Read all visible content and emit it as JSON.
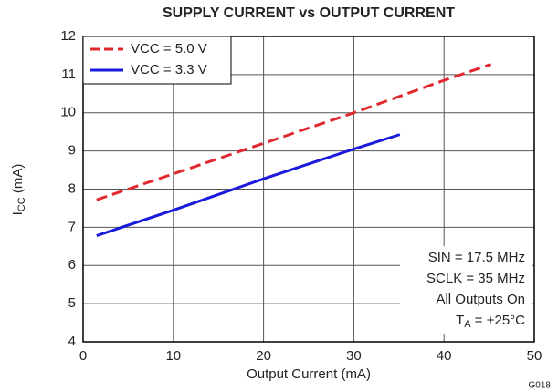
{
  "chart_data": {
    "type": "line",
    "title": "SUPPLY CURRENT vs OUTPUT CURRENT",
    "x_label": "Output Current (mA)",
    "y_label": {
      "main": "I",
      "sub": "CC",
      "rest": " (mA)"
    },
    "figure_id": "G018",
    "xlim": [
      0,
      50
    ],
    "xticks": [
      0,
      10,
      20,
      30,
      40,
      50
    ],
    "ylim": [
      4,
      12
    ],
    "yticks": [
      4,
      5,
      6,
      7,
      8,
      9,
      10,
      11,
      12
    ],
    "grid": true,
    "legend": "upper-left",
    "series": [
      {
        "name": "VCC = 5.0 V",
        "color": "#e0282e",
        "dash": true,
        "x": [
          1.5,
          10,
          20,
          30,
          40,
          45.2
        ],
        "values": [
          7.72,
          8.4,
          9.2,
          10.0,
          10.85,
          11.27
        ]
      },
      {
        "name": "VCC = 3.3 V",
        "color": "#1a1adc",
        "dash": false,
        "x": [
          1.5,
          10,
          20,
          30,
          35.1
        ],
        "values": [
          6.78,
          7.45,
          8.27,
          9.05,
          9.43
        ]
      }
    ],
    "annotations": [
      "SIN = 17.5 MHz",
      "SCLK = 35 MHz",
      "All Outputs On",
      {
        "main": "T",
        "sub": "A",
        "rest": " = +25°C"
      }
    ]
  }
}
